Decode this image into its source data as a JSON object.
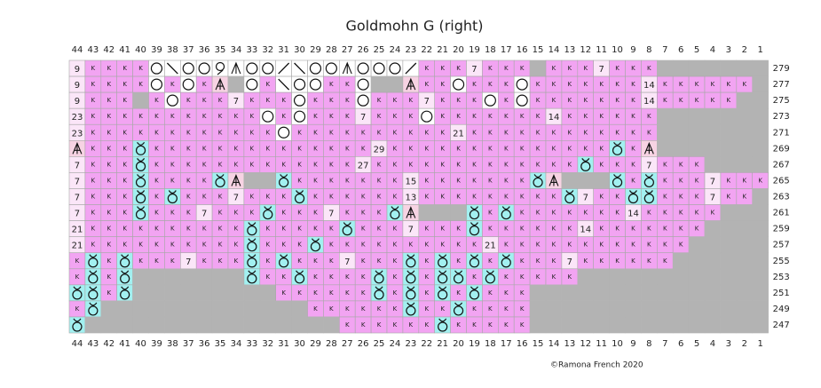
{
  "title": "Goldmohn G (right)",
  "columns": [
    44,
    43,
    42,
    41,
    40,
    39,
    38,
    37,
    36,
    35,
    34,
    33,
    32,
    31,
    30,
    29,
    28,
    27,
    26,
    25,
    24,
    23,
    22,
    21,
    20,
    19,
    18,
    17,
    16,
    15,
    14,
    13,
    12,
    11,
    10,
    9,
    8,
    7,
    6,
    5,
    4,
    3,
    2,
    1
  ],
  "rows": [
    {
      "label": 279,
      "cells": [
        "9",
        "K",
        "K",
        "K",
        "K",
        "O",
        "\\",
        "O",
        "O",
        "L",
        "M",
        "O",
        "O",
        "/",
        "\\",
        "O",
        "O",
        "M",
        "O",
        "O",
        "O",
        "/",
        "K",
        "K",
        "K",
        "7",
        "K",
        "K",
        "K",
        "-",
        "K",
        "K",
        "K",
        "7",
        "K",
        "K",
        "K",
        "-",
        "-",
        "-",
        "-",
        "-",
        "-",
        "-"
      ]
    },
    {
      "label": 277,
      "cells": [
        "9",
        "K",
        "K",
        "K",
        "K",
        "O",
        "K",
        "O",
        "K",
        "A",
        "-",
        "O",
        "K",
        "\\",
        "O",
        "O",
        "K",
        "K",
        "O",
        "-",
        "-",
        "A",
        "K",
        "K",
        "O",
        "K",
        "K",
        "K",
        "O",
        "K",
        "K",
        "K",
        "K",
        "K",
        "K",
        "K",
        "14",
        "K",
        "K",
        "K",
        "K",
        "K",
        "K",
        "-"
      ]
    },
    {
      "label": 275,
      "cells": [
        "9",
        "K",
        "K",
        "K",
        "-",
        "K",
        "O",
        "K",
        "K",
        "K",
        "7",
        "K",
        "K",
        "K",
        "O",
        "K",
        "K",
        "K",
        "O",
        "K",
        "K",
        "K",
        "7",
        "K",
        "K",
        "K",
        "O",
        "K",
        "O",
        "K",
        "K",
        "K",
        "K",
        "K",
        "K",
        "K",
        "14",
        "K",
        "K",
        "K",
        "K",
        "K",
        "-",
        "-"
      ]
    },
    {
      "label": 273,
      "cells": [
        "23",
        "K",
        "K",
        "K",
        "K",
        "K",
        "K",
        "K",
        "K",
        "K",
        "K",
        "K",
        "O",
        "K",
        "O",
        "K",
        "K",
        "K",
        "7",
        "K",
        "K",
        "K",
        "O",
        "K",
        "K",
        "K",
        "K",
        "K",
        "K",
        "K",
        "14",
        "K",
        "K",
        "K",
        "K",
        "K",
        "K",
        "-",
        "-",
        "-",
        "-",
        "-",
        "-",
        "-"
      ]
    },
    {
      "label": 271,
      "cells": [
        "23",
        "K",
        "K",
        "K",
        "K",
        "K",
        "K",
        "K",
        "K",
        "K",
        "K",
        "K",
        "K",
        "O",
        "K",
        "K",
        "K",
        "K",
        "K",
        "K",
        "K",
        "K",
        "K",
        "K",
        "21",
        "K",
        "K",
        "K",
        "K",
        "K",
        "K",
        "K",
        "K",
        "K",
        "K",
        "K",
        "K",
        "-",
        "-",
        "-",
        "-",
        "-",
        "-",
        "-"
      ]
    },
    {
      "label": 269,
      "cells": [
        "A",
        "K",
        "K",
        "K",
        "Q",
        "K",
        "K",
        "K",
        "K",
        "K",
        "K",
        "K",
        "K",
        "K",
        "K",
        "K",
        "K",
        "K",
        "K",
        "29",
        "K",
        "K",
        "K",
        "K",
        "K",
        "K",
        "K",
        "K",
        "K",
        "K",
        "K",
        "K",
        "K",
        "K",
        "Q",
        "K",
        "A",
        "-",
        "-",
        "-",
        "-",
        "-",
        "-",
        "-"
      ]
    },
    {
      "label": 267,
      "cells": [
        "7",
        "K",
        "K",
        "K",
        "Q",
        "K",
        "K",
        "K",
        "K",
        "K",
        "K",
        "K",
        "K",
        "K",
        "K",
        "K",
        "K",
        "K",
        "27",
        "K",
        "K",
        "K",
        "K",
        "K",
        "K",
        "K",
        "K",
        "K",
        "K",
        "K",
        "K",
        "K",
        "Q",
        "K",
        "K",
        "K",
        "7",
        "K",
        "K",
        "K",
        "-",
        "-",
        "-",
        "-"
      ]
    },
    {
      "label": 265,
      "cells": [
        "7",
        "K",
        "K",
        "K",
        "Q",
        "K",
        "K",
        "K",
        "K",
        "Q",
        "A",
        "-",
        "-",
        "Q",
        "K",
        "K",
        "K",
        "K",
        "K",
        "K",
        "K",
        "15",
        "K",
        "K",
        "K",
        "K",
        "K",
        "K",
        "K",
        "Q",
        "A",
        "-",
        "-",
        "-",
        "Q",
        "K",
        "Q",
        "K",
        "K",
        "K",
        "7",
        "K",
        "K",
        "K"
      ]
    },
    {
      "label": 263,
      "cells": [
        "7",
        "K",
        "K",
        "K",
        "Q",
        "K",
        "Q",
        "K",
        "K",
        "K",
        "7",
        "K",
        "K",
        "K",
        "Q",
        "K",
        "K",
        "K",
        "K",
        "K",
        "K",
        "13",
        "K",
        "K",
        "K",
        "K",
        "K",
        "K",
        "K",
        "K",
        "K",
        "Q",
        "7",
        "K",
        "K",
        "Q",
        "Q",
        "K",
        "K",
        "K",
        "7",
        "K",
        "K",
        "-"
      ]
    },
    {
      "label": 261,
      "cells": [
        "7",
        "K",
        "K",
        "K",
        "Q",
        "K",
        "K",
        "K",
        "7",
        "K",
        "K",
        "K",
        "Q",
        "K",
        "K",
        "K",
        "7",
        "K",
        "K",
        "K",
        "Q",
        "A",
        "-",
        "-",
        "-",
        "Q",
        "K",
        "Q",
        "K",
        "K",
        "K",
        "K",
        "K",
        "K",
        "K",
        "14",
        "K",
        "K",
        "K",
        "K",
        "K",
        "-",
        "-",
        "-"
      ]
    },
    {
      "label": 259,
      "cells": [
        "21",
        "K",
        "K",
        "K",
        "K",
        "K",
        "K",
        "K",
        "K",
        "K",
        "K",
        "Q",
        "K",
        "K",
        "K",
        "K",
        "K",
        "Q",
        "K",
        "K",
        "K",
        "7",
        "K",
        "K",
        "K",
        "Q",
        "K",
        "K",
        "K",
        "K",
        "K",
        "K",
        "14",
        "K",
        "K",
        "K",
        "K",
        "K",
        "K",
        "K",
        "-",
        "-",
        "-",
        "-"
      ]
    },
    {
      "label": 257,
      "cells": [
        "21",
        "K",
        "K",
        "K",
        "K",
        "K",
        "K",
        "K",
        "K",
        "K",
        "K",
        "Q",
        "K",
        "K",
        "K",
        "Q",
        "K",
        "K",
        "K",
        "K",
        "K",
        "K",
        "K",
        "K",
        "K",
        "K",
        "21",
        "K",
        "K",
        "K",
        "K",
        "K",
        "K",
        "K",
        "K",
        "K",
        "K",
        "K",
        "K",
        "-",
        "-",
        "-",
        "-",
        "-"
      ]
    },
    {
      "label": 255,
      "cells": [
        "K",
        "Q",
        "K",
        "Q",
        "K",
        "K",
        "K",
        "7",
        "K",
        "K",
        "K",
        "Q",
        "K",
        "Q",
        "K",
        "K",
        "K",
        "7",
        "K",
        "K",
        "K",
        "Q",
        "K",
        "Q",
        "K",
        "Q",
        "K",
        "Q",
        "K",
        "K",
        "K",
        "7",
        "K",
        "K",
        "K",
        "K",
        "K",
        "K",
        "-",
        "-",
        "-",
        "-",
        "-",
        "-"
      ]
    },
    {
      "label": 253,
      "cells": [
        "K",
        "Q",
        "K",
        "Q",
        "-",
        "-",
        "-",
        "-",
        "-",
        "-",
        "-",
        "Q",
        "K",
        "K",
        "Q",
        "K",
        "K",
        "K",
        "K",
        "Q",
        "K",
        "Q",
        "K",
        "Q",
        "Q",
        "K",
        "Q",
        "K",
        "K",
        "K",
        "K",
        "K",
        "-",
        "-",
        "-",
        "-",
        "-",
        "-",
        "-",
        "-",
        "-",
        "-",
        "-",
        "-"
      ]
    },
    {
      "label": 251,
      "cells": [
        "Q",
        "Q",
        "K",
        "Q",
        "-",
        "-",
        "-",
        "-",
        "-",
        "-",
        "-",
        "-",
        "-",
        "K",
        "K",
        "K",
        "K",
        "K",
        "K",
        "Q",
        "K",
        "Q",
        "K",
        "Q",
        "K",
        "Q",
        "K",
        "K",
        "K",
        "-",
        "-",
        "-",
        "-",
        "-",
        "-",
        "-",
        "-",
        "-",
        "-",
        "-",
        "-",
        "-",
        "-",
        "-"
      ]
    },
    {
      "label": 249,
      "cells": [
        "K",
        "Q",
        "-",
        "-",
        "-",
        "-",
        "-",
        "-",
        "-",
        "-",
        "-",
        "-",
        "-",
        "-",
        "-",
        "K",
        "K",
        "K",
        "K",
        "K",
        "K",
        "Q",
        "K",
        "K",
        "Q",
        "K",
        "K",
        "K",
        "K",
        "-",
        "-",
        "-",
        "-",
        "-",
        "-",
        "-",
        "-",
        "-",
        "-",
        "-",
        "-",
        "-",
        "-",
        "-"
      ]
    },
    {
      "label": 247,
      "cells": [
        "Q",
        "-",
        "-",
        "-",
        "-",
        "-",
        "-",
        "-",
        "-",
        "-",
        "-",
        "-",
        "-",
        "-",
        "-",
        "-",
        "-",
        "K",
        "K",
        "K",
        "K",
        "K",
        "K",
        "Q",
        "K",
        "K",
        "K",
        "K",
        "K",
        "-",
        "-",
        "-",
        "-",
        "-",
        "-",
        "-",
        "-",
        "-",
        "-",
        "-",
        "-",
        "-",
        "-",
        "-"
      ]
    }
  ],
  "credit": "©Ramona French 2020"
}
